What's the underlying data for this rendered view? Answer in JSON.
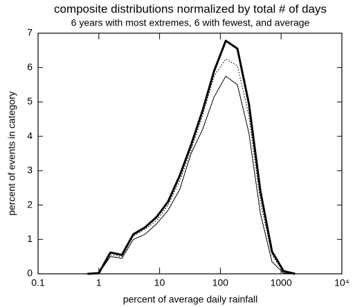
{
  "chart_data": {
    "type": "line",
    "title": "composite distributions normalized by total # of days",
    "subtitle": "6 years with most extremes, 6 with fewest, and average",
    "x_label": "percent of average daily rainfall",
    "y_label": "percent of events in category",
    "x_scale": "log",
    "x": [
      0.65,
      1,
      1.55,
      2.4,
      3.7,
      5.75,
      8.9,
      13.8,
      21.4,
      33,
      51,
      79,
      123,
      191,
      295,
      457,
      708,
      1096,
      1700
    ],
    "series": [
      {
        "color": "#000000",
        "linewidth": 3,
        "style": "solid",
        "values": [
          0,
          0.02,
          0.62,
          0.55,
          1.15,
          1.35,
          1.65,
          2.1,
          2.85,
          3.75,
          4.75,
          5.9,
          6.78,
          6.55,
          4.95,
          2.4,
          0.65,
          0.08,
          0
        ]
      },
      {
        "color": "#000000",
        "linewidth": 1.2,
        "style": "dotted",
        "values": [
          0,
          0.02,
          0.55,
          0.5,
          1.1,
          1.3,
          1.55,
          2.0,
          2.7,
          3.6,
          4.6,
          5.75,
          6.25,
          6.05,
          4.6,
          2.1,
          0.55,
          0.05,
          0
        ]
      },
      {
        "color": "#000000",
        "linewidth": 1,
        "style": "solid",
        "values": [
          0,
          0.02,
          0.5,
          0.45,
          1.0,
          1.15,
          1.45,
          1.85,
          2.45,
          3.5,
          4.2,
          5.15,
          5.75,
          5.5,
          4.1,
          1.75,
          0.35,
          0.02,
          0
        ]
      }
    ],
    "xlim": [
      0.1,
      10000
    ],
    "xticks": [
      0.1,
      1,
      10,
      100,
      1000,
      {
        "value": 10000,
        "label": "10⁴"
      }
    ],
    "ylim": [
      0,
      7
    ],
    "yticks": [
      0,
      1,
      2,
      3,
      4,
      5,
      6,
      7
    ],
    "grid": false
  }
}
